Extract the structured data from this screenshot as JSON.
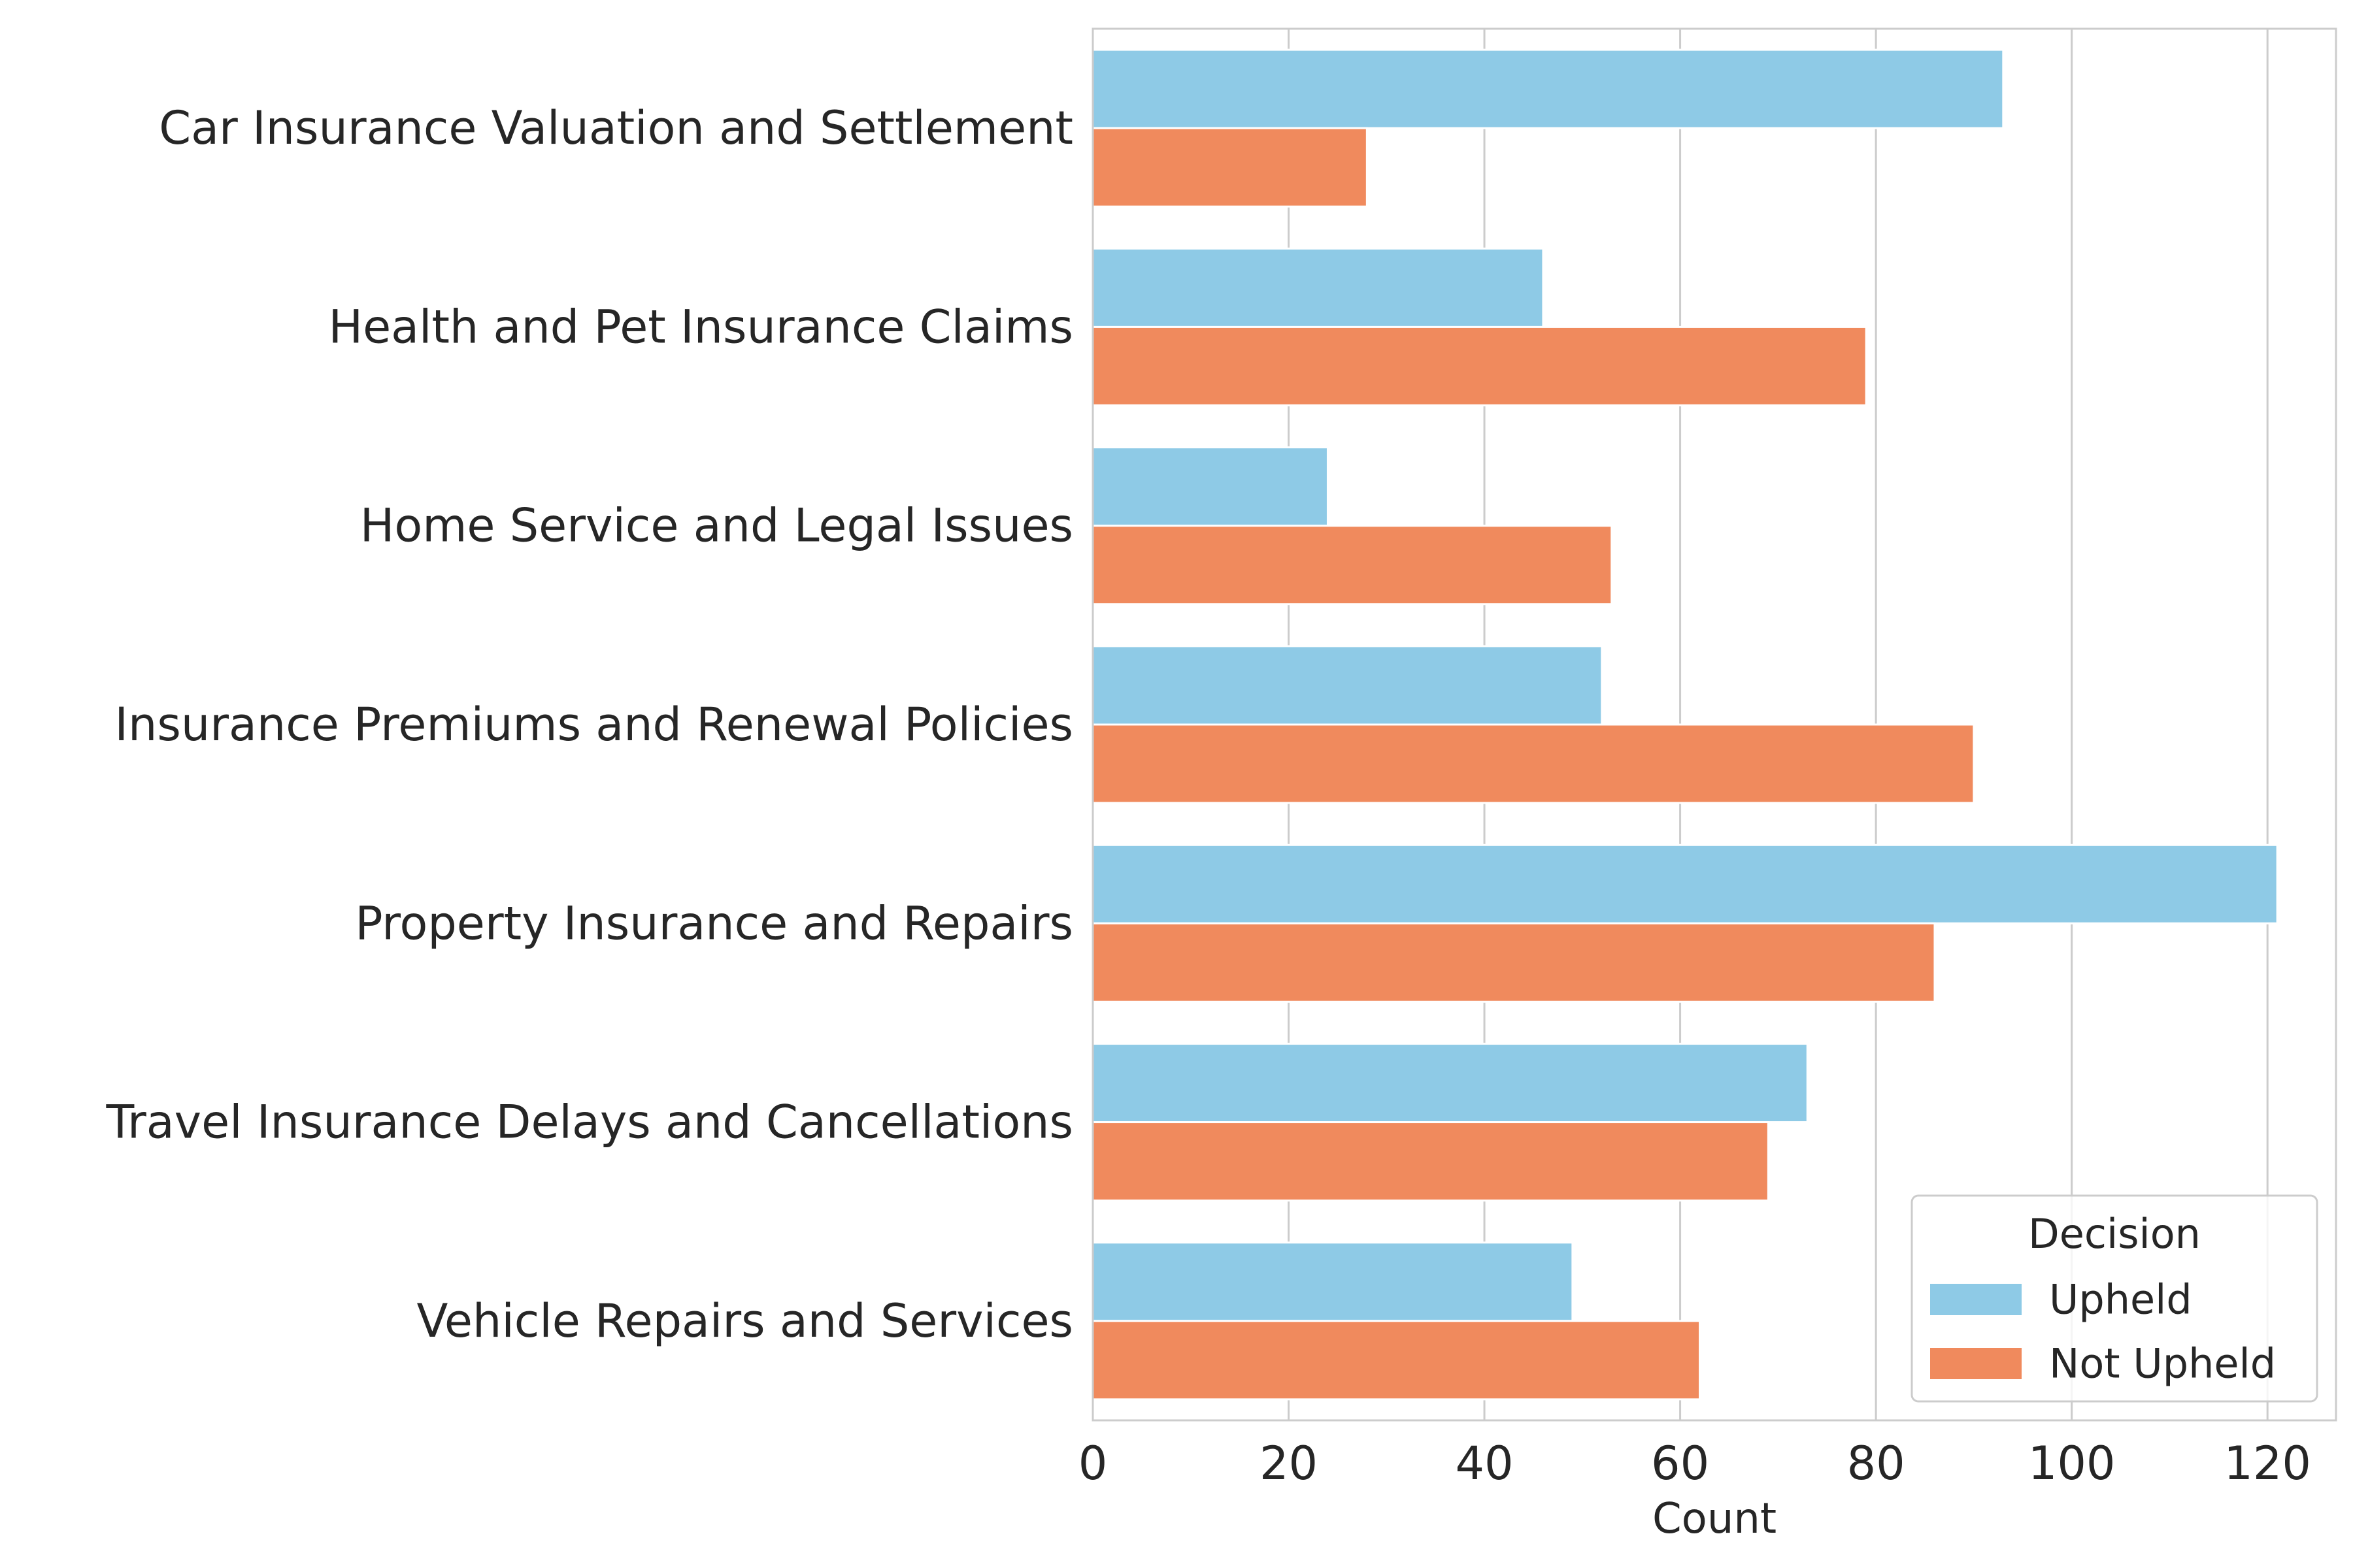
{
  "chart_data": {
    "type": "bar",
    "orientation": "horizontal",
    "categories": [
      "Car Insurance Valuation and Settlement",
      "Health and Pet Insurance Claims",
      "Home Service and Legal Issues",
      "Insurance Premiums and Renewal Policies",
      "Property Insurance and Repairs",
      "Travel Insurance Delays and Cancellations",
      "Vehicle Repairs and Services"
    ],
    "series": [
      {
        "name": "Upheld",
        "color": "#8ecae6",
        "values": [
          93,
          46,
          24,
          52,
          121,
          73,
          49
        ]
      },
      {
        "name": "Not Upheld",
        "color": "#f08a5d",
        "values": [
          28,
          79,
          53,
          90,
          86,
          69,
          62
        ]
      }
    ],
    "title": "",
    "xlabel": "Count",
    "ylabel": "",
    "xlim": [
      0,
      127
    ],
    "xticks": [
      0,
      20,
      40,
      60,
      80,
      100,
      120
    ],
    "grid": "vertical",
    "legend": {
      "title": "Decision",
      "position": "lower-right"
    }
  }
}
